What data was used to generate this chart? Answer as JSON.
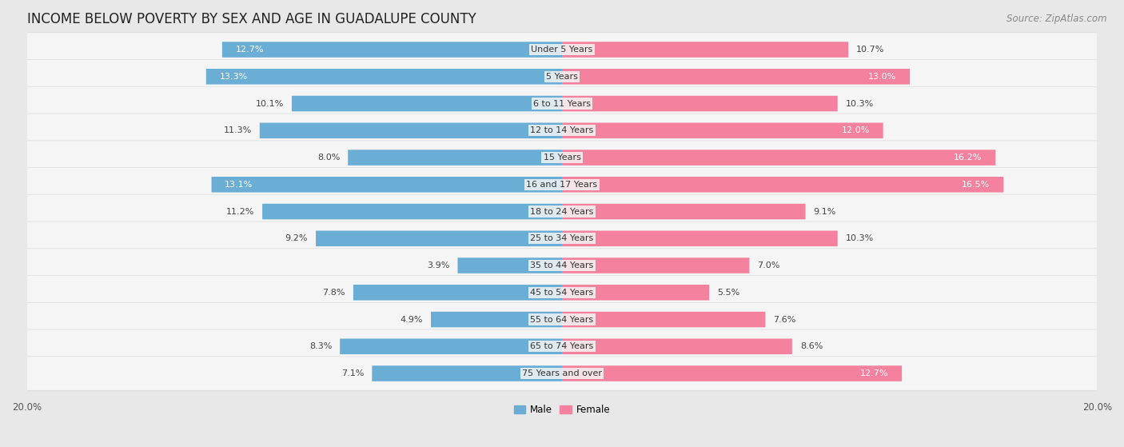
{
  "title": "INCOME BELOW POVERTY BY SEX AND AGE IN GUADALUPE COUNTY",
  "source": "Source: ZipAtlas.com",
  "categories": [
    "Under 5 Years",
    "5 Years",
    "6 to 11 Years",
    "12 to 14 Years",
    "15 Years",
    "16 and 17 Years",
    "18 to 24 Years",
    "25 to 34 Years",
    "35 to 44 Years",
    "45 to 54 Years",
    "55 to 64 Years",
    "65 to 74 Years",
    "75 Years and over"
  ],
  "male_values": [
    12.7,
    13.3,
    10.1,
    11.3,
    8.0,
    13.1,
    11.2,
    9.2,
    3.9,
    7.8,
    4.9,
    8.3,
    7.1
  ],
  "female_values": [
    10.7,
    13.0,
    10.3,
    12.0,
    16.2,
    16.5,
    9.1,
    10.3,
    7.0,
    5.5,
    7.6,
    8.6,
    12.7
  ],
  "male_color": "#6aaed6",
  "female_color": "#f4829e",
  "male_color_light": "#aecde3",
  "female_color_light": "#f9b8cb",
  "male_label": "Male",
  "female_label": "Female",
  "axis_max": 20.0,
  "background_color": "#e8e8e8",
  "bar_bg_color": "#f5f5f5",
  "bar_border_color": "#cccccc",
  "title_fontsize": 12,
  "source_fontsize": 8.5,
  "label_fontsize": 8,
  "value_fontsize": 8,
  "tick_fontsize": 8.5
}
